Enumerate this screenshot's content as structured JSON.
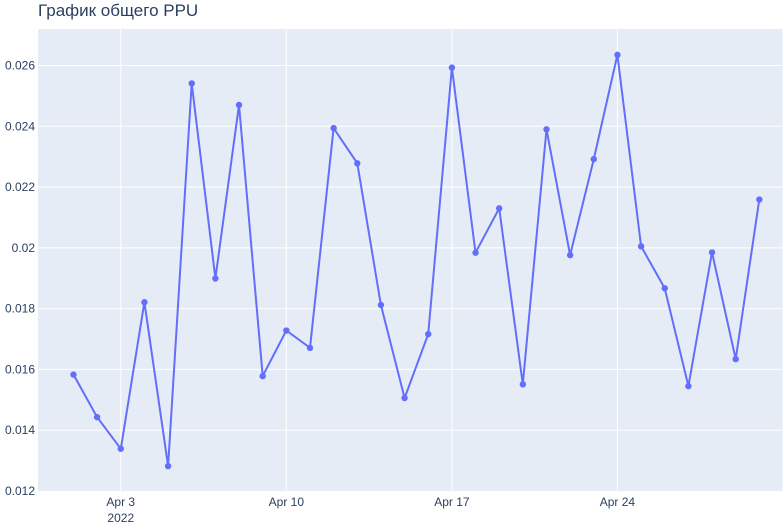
{
  "chart_data": {
    "type": "line",
    "title": "График общего PPU",
    "xlabel": "",
    "ylabel": "",
    "x": [
      "2022-04-01",
      "2022-04-02",
      "2022-04-03",
      "2022-04-04",
      "2022-04-05",
      "2022-04-06",
      "2022-04-07",
      "2022-04-08",
      "2022-04-09",
      "2022-04-10",
      "2022-04-11",
      "2022-04-12",
      "2022-04-13",
      "2022-04-14",
      "2022-04-15",
      "2022-04-16",
      "2022-04-17",
      "2022-04-18",
      "2022-04-19",
      "2022-04-20",
      "2022-04-21",
      "2022-04-22",
      "2022-04-23",
      "2022-04-24",
      "2022-04-25",
      "2022-04-26",
      "2022-04-27",
      "2022-04-28",
      "2022-04-29",
      "2022-04-30"
    ],
    "series": [
      {
        "color": "#636efa",
        "values": [
          0.01583,
          0.01443,
          0.01339,
          0.01821,
          0.01282,
          0.02541,
          0.01899,
          0.0247,
          0.01578,
          0.01728,
          0.01671,
          0.02394,
          0.02278,
          0.01812,
          0.01506,
          0.01716,
          0.02593,
          0.01984,
          0.0213,
          0.01551,
          0.0239,
          0.01976,
          0.02292,
          0.02635,
          0.02005,
          0.01867,
          0.01545,
          0.01985,
          0.01634,
          0.02159
        ]
      }
    ],
    "xlim": [
      "2022-03-30T12:00",
      "2022-05-01"
    ],
    "ylim": [
      0.012,
      0.0272
    ],
    "xticks": [
      {
        "date": "2022-04-03",
        "label": "Apr 3",
        "sublabel": "2022"
      },
      {
        "date": "2022-04-10",
        "label": "Apr 10",
        "sublabel": ""
      },
      {
        "date": "2022-04-17",
        "label": "Apr 17",
        "sublabel": ""
      },
      {
        "date": "2022-04-24",
        "label": "Apr 24",
        "sublabel": ""
      },
      {
        "date": "2022-05-01",
        "label": "",
        "sublabel": ""
      }
    ],
    "yticks": [
      {
        "value": 0.012,
        "label": "0.012"
      },
      {
        "value": 0.014,
        "label": "0.014"
      },
      {
        "value": 0.016,
        "label": "0.016"
      },
      {
        "value": 0.018,
        "label": "0.018"
      },
      {
        "value": 0.02,
        "label": "0.02"
      },
      {
        "value": 0.022,
        "label": "0.022"
      },
      {
        "value": 0.024,
        "label": "0.024"
      },
      {
        "value": 0.026,
        "label": "0.026"
      }
    ],
    "grid": true,
    "background": "#e5ecf6"
  }
}
